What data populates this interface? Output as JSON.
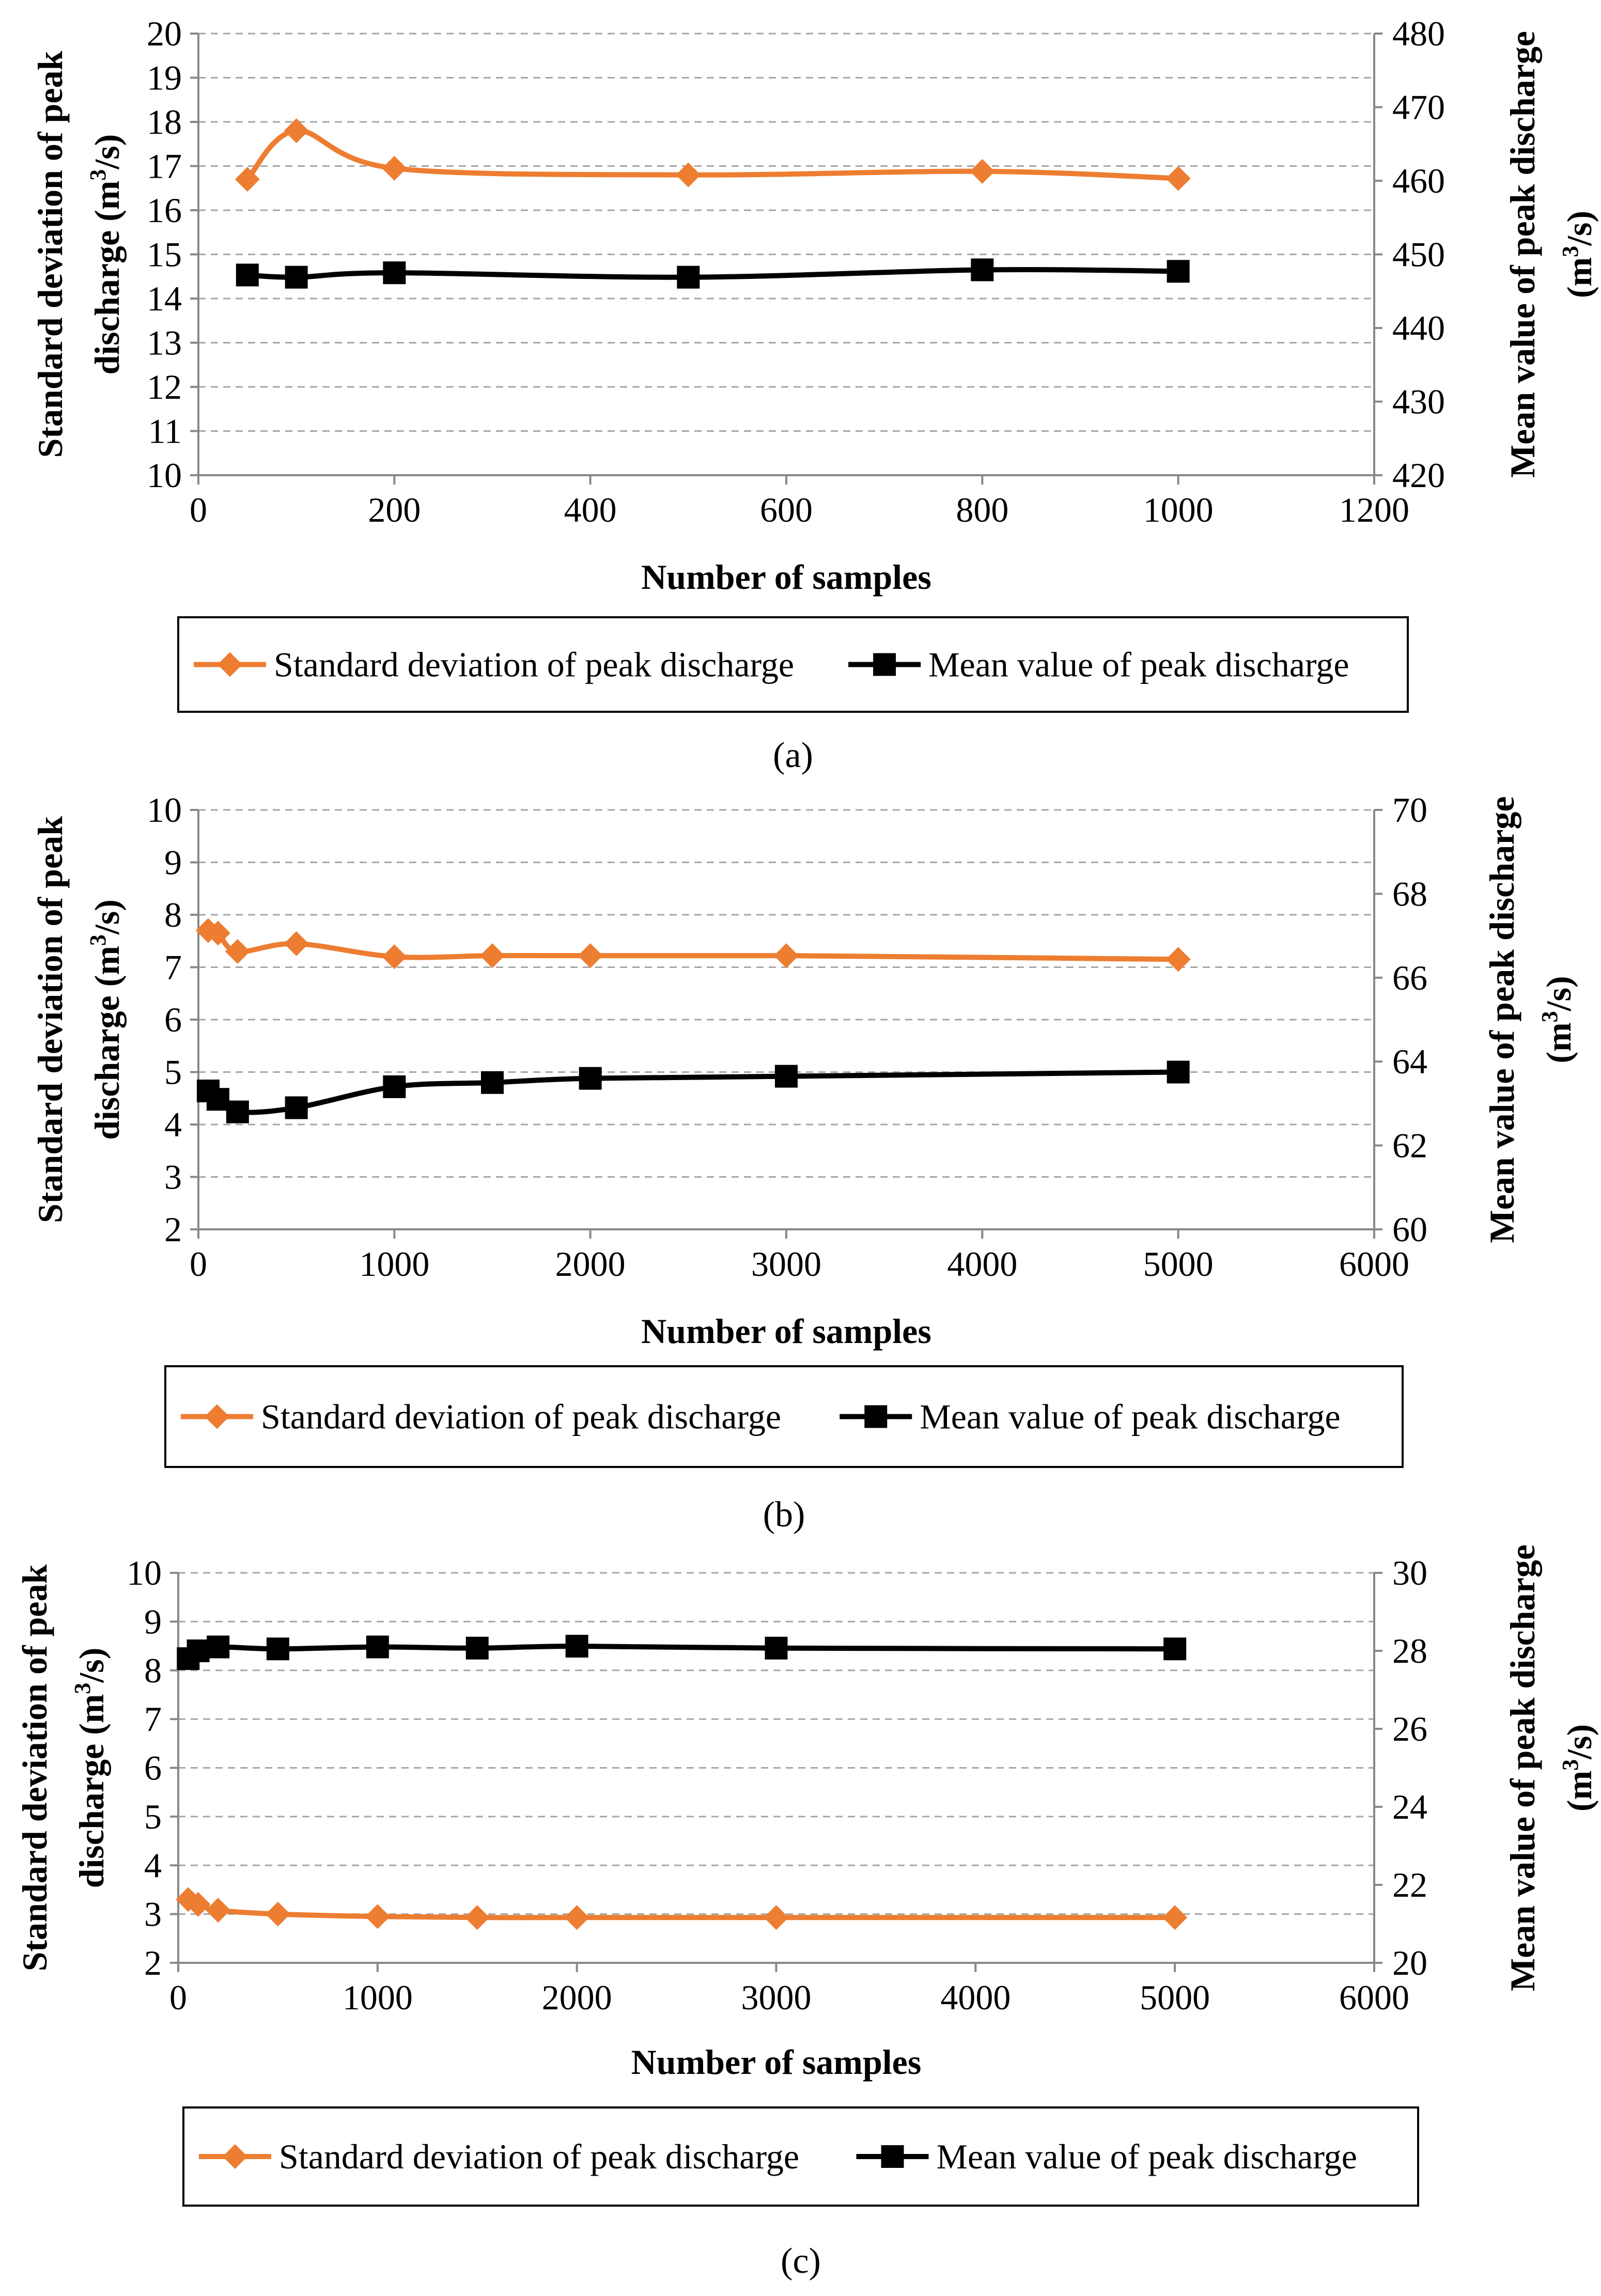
{
  "colors": {
    "std_series": "#ED7D31",
    "mean_series": "#000000",
    "grid": "#A6A6A6"
  },
  "chart_data": [
    {
      "type": "line",
      "panel_label": "(a)",
      "xlabel": "Number of samples",
      "ylabel_left": {
        "main": "Standard deviation of peak",
        "line2_pre": "discharge (m",
        "sup": "3",
        "post": "/s)"
      },
      "ylabel_right": {
        "main": "Mean value of peak discharge",
        "line2_pre": "(m",
        "sup": "3",
        "post": "/s)"
      },
      "xlim": [
        0,
        1200
      ],
      "xticks": [
        "0",
        "200",
        "400",
        "600",
        "800",
        "1000",
        "1200"
      ],
      "ylim_left": [
        10,
        20
      ],
      "yticks_left": [
        "10",
        "11",
        "12",
        "13",
        "14",
        "15",
        "16",
        "17",
        "18",
        "19",
        "20"
      ],
      "ylim_right": [
        420,
        480
      ],
      "yticks_right": [
        "420",
        "430",
        "440",
        "450",
        "460",
        "470",
        "480"
      ],
      "grid": "horizontal dashed",
      "legend_position": "bottom",
      "series": [
        {
          "name": "Standard deviation of peak discharge",
          "axis": "left",
          "marker": "diamond",
          "x": [
            50,
            100,
            200,
            500,
            800,
            1000
          ],
          "y": [
            16.7,
            17.8,
            16.95,
            16.8,
            16.88,
            16.72
          ]
        },
        {
          "name": "Mean value of peak discharge",
          "axis": "right",
          "marker": "square",
          "x": [
            50,
            100,
            200,
            500,
            800,
            1000
          ],
          "y": [
            447.2,
            446.9,
            447.5,
            446.9,
            447.9,
            447.7
          ]
        }
      ]
    },
    {
      "type": "line",
      "panel_label": "(b)",
      "xlabel": "Number of samples",
      "ylabel_left": {
        "main": "Standard deviation of peak",
        "line2_pre": "discharge (m",
        "sup": "3",
        "post": "/s)"
      },
      "ylabel_right": {
        "main": "Mean value of peak discharge",
        "line2_pre": "(m",
        "sup": "3",
        "post": "/s)"
      },
      "xlim": [
        0,
        6000
      ],
      "xticks": [
        "0",
        "1000",
        "2000",
        "3000",
        "4000",
        "5000",
        "6000"
      ],
      "ylim_left": [
        2,
        10
      ],
      "yticks_left": [
        "2",
        "3",
        "4",
        "5",
        "6",
        "7",
        "8",
        "9",
        "10"
      ],
      "ylim_right": [
        60,
        70
      ],
      "yticks_right": [
        "60",
        "62",
        "64",
        "66",
        "68",
        "70"
      ],
      "grid": "horizontal dashed",
      "legend_position": "bottom",
      "series": [
        {
          "name": "Standard deviation of peak discharge",
          "axis": "left",
          "marker": "diamond",
          "x": [
            50,
            100,
            200,
            500,
            1000,
            1500,
            2000,
            3000,
            5000
          ],
          "y": [
            7.7,
            7.65,
            7.3,
            7.45,
            7.2,
            7.22,
            7.22,
            7.22,
            7.15
          ]
        },
        {
          "name": "Mean value of peak discharge",
          "axis": "right",
          "marker": "square",
          "x": [
            50,
            100,
            200,
            500,
            1000,
            1500,
            2000,
            3000,
            5000
          ],
          "y": [
            63.3,
            63.1,
            62.8,
            62.9,
            63.4,
            63.5,
            63.6,
            63.65,
            63.75
          ]
        }
      ]
    },
    {
      "type": "line",
      "panel_label": "(c)",
      "xlabel": "Number of samples",
      "ylabel_left": {
        "main": "Standard deviation of peak",
        "line2_pre": "discharge (m",
        "sup": "3",
        "post": "/s)"
      },
      "ylabel_right": {
        "main": "Mean value of peak discharge",
        "line2_pre": "(m",
        "sup": "3",
        "post": "/s)"
      },
      "xlim": [
        0,
        6000
      ],
      "xticks": [
        "0",
        "1000",
        "2000",
        "3000",
        "4000",
        "5000",
        "6000"
      ],
      "ylim_left": [
        2,
        10
      ],
      "yticks_left": [
        "2",
        "3",
        "4",
        "5",
        "6",
        "7",
        "8",
        "9",
        "10"
      ],
      "ylim_right": [
        20,
        30
      ],
      "yticks_right": [
        "20",
        "22",
        "24",
        "26",
        "28",
        "30"
      ],
      "grid": "horizontal dashed",
      "legend_position": "bottom",
      "series": [
        {
          "name": "Standard deviation of peak discharge",
          "axis": "left",
          "marker": "diamond",
          "x": [
            50,
            100,
            200,
            500,
            1000,
            1500,
            2000,
            3000,
            5000
          ],
          "y": [
            3.3,
            3.2,
            3.08,
            3.0,
            2.95,
            2.93,
            2.93,
            2.93,
            2.93
          ]
        },
        {
          "name": "Mean value of peak discharge",
          "axis": "right",
          "marker": "square",
          "x": [
            50,
            100,
            200,
            500,
            1000,
            1500,
            2000,
            3000,
            5000
          ],
          "y": [
            27.8,
            28.0,
            28.1,
            28.05,
            28.1,
            28.07,
            28.12,
            28.07,
            28.05
          ]
        }
      ]
    }
  ]
}
